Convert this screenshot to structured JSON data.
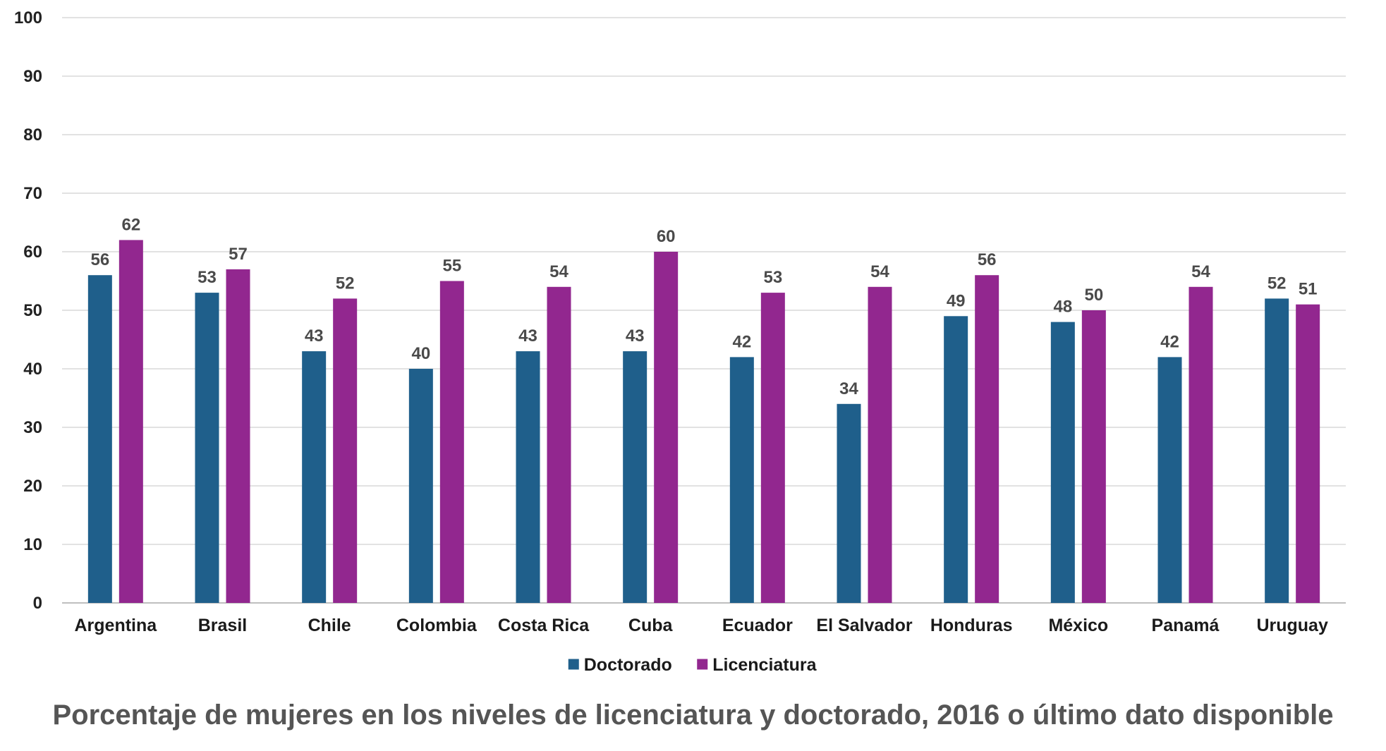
{
  "chart_data": {
    "type": "bar",
    "title": "Porcentaje de mujeres en los niveles de licenciatura y doctorado, 2016 o último dato disponible",
    "categories": [
      "Argentina",
      "Brasil",
      "Chile",
      "Colombia",
      "Costa Rica",
      "Cuba",
      "Ecuador",
      "El Salvador",
      "Honduras",
      "México",
      "Panamá",
      "Uruguay"
    ],
    "series": [
      {
        "name": "Doctorado",
        "color": "#1f5f8b",
        "values": [
          56,
          53,
          43,
          40,
          43,
          43,
          42,
          34,
          49,
          48,
          42,
          52
        ]
      },
      {
        "name": "Licenciatura",
        "color": "#92278f",
        "values": [
          62,
          57,
          52,
          55,
          54,
          60,
          53,
          54,
          56,
          50,
          54,
          51
        ]
      }
    ],
    "ylim": [
      0,
      100
    ],
    "yticks": [
      0,
      10,
      20,
      30,
      40,
      50,
      60,
      70,
      80,
      90,
      100
    ],
    "grid": true,
    "legend": "bottom",
    "data_labels": true
  }
}
